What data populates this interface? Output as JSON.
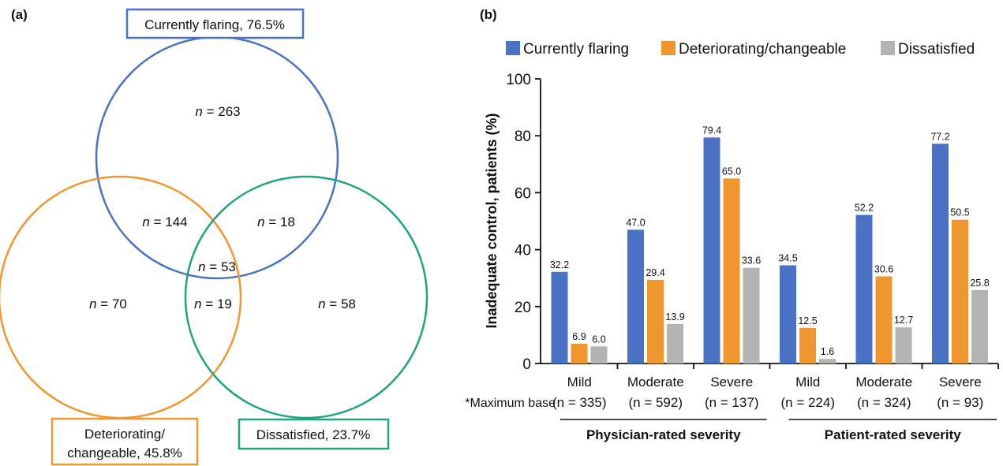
{
  "venn": {
    "panel_label": "(a)",
    "sets": [
      {
        "label": "Currently flaring, 76.5%",
        "color": "#4a72c4"
      },
      {
        "label_line1": "Deteriorating/",
        "label_line2": "changeable, 45.8%",
        "color": "#f0962e"
      },
      {
        "label": "Dissatisfied, 23.7%",
        "color": "#21a382"
      }
    ],
    "regions": [
      {
        "region": "flaring only",
        "n": 263
      },
      {
        "region": "flaring and deteriorating",
        "n": 144
      },
      {
        "region": "flaring and dissatisfied",
        "n": 18
      },
      {
        "region": "all three",
        "n": 53
      },
      {
        "region": "deteriorating only",
        "n": 70
      },
      {
        "region": "deteriorating and dissatisfied",
        "n": 19
      },
      {
        "region": "dissatisfied only",
        "n": 58
      }
    ]
  },
  "chart_data": {
    "type": "bar",
    "panel_label": "(b)",
    "ylabel": "Inadequate control, patients (%)",
    "ylim": [
      0,
      100
    ],
    "yticks": [
      0,
      20,
      40,
      60,
      80,
      100
    ],
    "grid": false,
    "legend_position": "top",
    "categories": [
      "Mild",
      "Moderate",
      "Severe",
      "Mild",
      "Moderate",
      "Severe"
    ],
    "bases": [
      "(n = 335)",
      "(n = 592)",
      "(n = 137)",
      "(n = 224)",
      "(n = 324)",
      "(n = 93)"
    ],
    "base_label": "*Maximum base",
    "groups": [
      {
        "label": "Physician-rated severity",
        "categories": [
          0,
          1,
          2
        ]
      },
      {
        "label": "Patient-rated severity",
        "categories": [
          3,
          4,
          5
        ]
      }
    ],
    "series": [
      {
        "name": "Currently flaring",
        "color": "#4a72c4",
        "values": [
          32.2,
          47.0,
          79.4,
          34.5,
          52.2,
          77.2
        ],
        "labels": [
          "32.2",
          "47.0",
          "79.4",
          "34.5",
          "52.2",
          "77.2"
        ]
      },
      {
        "name": "Deteriorating/changeable",
        "color": "#f0962e",
        "values": [
          6.9,
          29.4,
          65.0,
          12.5,
          30.6,
          50.5
        ],
        "labels": [
          "6.9",
          "29.4",
          "65.0",
          "12.5",
          "30.6",
          "50.5"
        ]
      },
      {
        "name": "Dissatisfied",
        "color": "#b3b3b3",
        "values": [
          6.0,
          13.9,
          33.6,
          1.6,
          12.7,
          25.8
        ],
        "labels": [
          "6.0",
          "13.9",
          "33.6",
          "1.6",
          "12.7",
          "25.8"
        ]
      }
    ]
  }
}
